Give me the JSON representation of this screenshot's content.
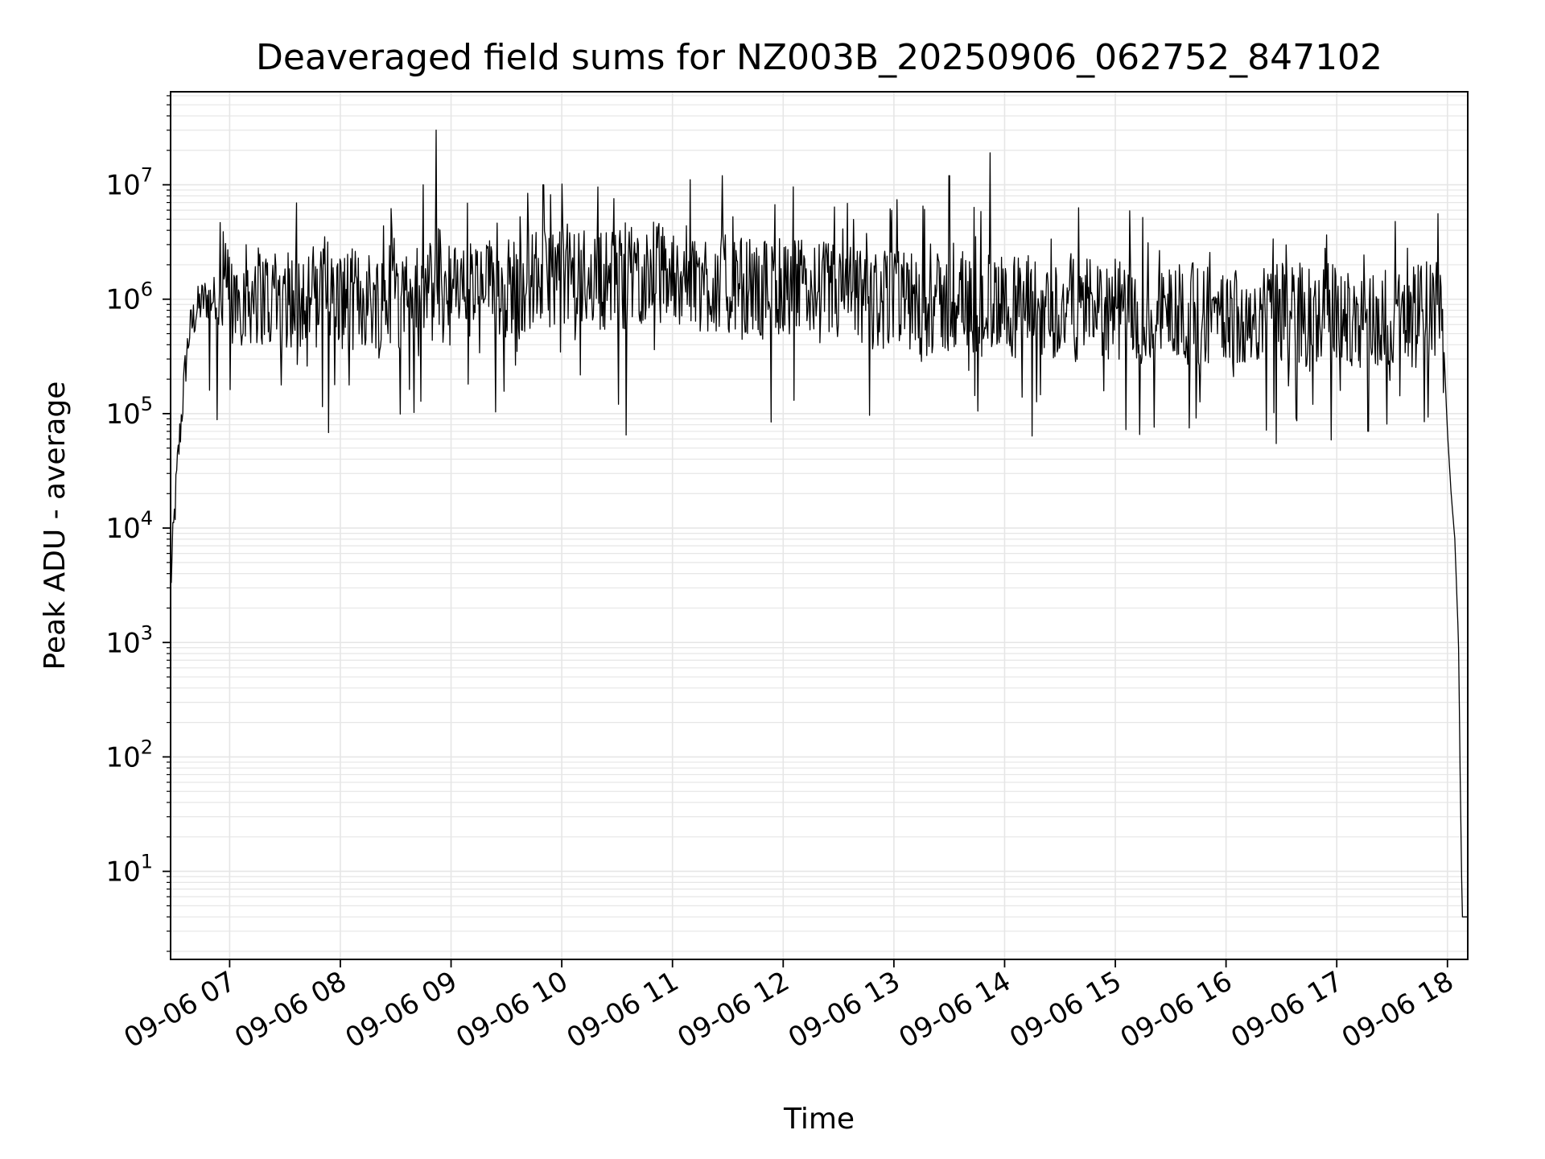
{
  "chart_data": {
    "type": "line",
    "title": "Deaveraged field sums for NZ003B_20250906_062752_847102",
    "xlabel": "Time",
    "ylabel": "Peak ADU - average",
    "yscale": "log",
    "xlim": [
      "2025-09-06 06:28",
      "2025-09-06 18:11"
    ],
    "ylim": [
      1.7,
      65000000
    ],
    "grid": true,
    "line_color": "#000000",
    "grid_color": "#e6e6e6",
    "x_ticks": [
      {
        "value": "2025-09-06 07:00",
        "label": "09-06 07"
      },
      {
        "value": "2025-09-06 08:00",
        "label": "09-06 08"
      },
      {
        "value": "2025-09-06 09:00",
        "label": "09-06 09"
      },
      {
        "value": "2025-09-06 10:00",
        "label": "09-06 10"
      },
      {
        "value": "2025-09-06 11:00",
        "label": "09-06 11"
      },
      {
        "value": "2025-09-06 12:00",
        "label": "09-06 12"
      },
      {
        "value": "2025-09-06 13:00",
        "label": "09-06 13"
      },
      {
        "value": "2025-09-06 14:00",
        "label": "09-06 14"
      },
      {
        "value": "2025-09-06 15:00",
        "label": "09-06 15"
      },
      {
        "value": "2025-09-06 16:00",
        "label": "09-06 16"
      },
      {
        "value": "2025-09-06 17:00",
        "label": "09-06 17"
      },
      {
        "value": "2025-09-06 18:00",
        "label": "09-06 18"
      }
    ],
    "y_ticks": [
      {
        "value": 10,
        "base": "10",
        "exp": "1"
      },
      {
        "value": 100,
        "base": "10",
        "exp": "2"
      },
      {
        "value": 1000,
        "base": "10",
        "exp": "3"
      },
      {
        "value": 10000,
        "base": "10",
        "exp": "4"
      },
      {
        "value": 100000,
        "base": "10",
        "exp": "5"
      },
      {
        "value": 1000000,
        "base": "10",
        "exp": "6"
      },
      {
        "value": 10000000,
        "base": "10",
        "exp": "7"
      }
    ],
    "series": [
      {
        "x": [
          "2025-09-06 06:28",
          "2025-09-06 06:30",
          "2025-09-06 06:32",
          "2025-09-06 06:34",
          "2025-09-06 06:36",
          "2025-09-06 06:38",
          "2025-09-06 06:42",
          "2025-09-06 06:46",
          "2025-09-06 06:50",
          "2025-09-06 06:55",
          "2025-09-06 07:00",
          "2025-09-06 07:15",
          "2025-09-06 07:30",
          "2025-09-06 07:45",
          "2025-09-06 08:00",
          "2025-09-06 08:15",
          "2025-09-06 08:30",
          "2025-09-06 08:45",
          "2025-09-06 09:00",
          "2025-09-06 09:15",
          "2025-09-06 09:30",
          "2025-09-06 09:45",
          "2025-09-06 10:00",
          "2025-09-06 10:15",
          "2025-09-06 10:30",
          "2025-09-06 10:45",
          "2025-09-06 11:00",
          "2025-09-06 11:15",
          "2025-09-06 11:30",
          "2025-09-06 11:45",
          "2025-09-06 12:00",
          "2025-09-06 12:15",
          "2025-09-06 12:30",
          "2025-09-06 12:45",
          "2025-09-06 13:00",
          "2025-09-06 13:15",
          "2025-09-06 13:30",
          "2025-09-06 13:45",
          "2025-09-06 14:00",
          "2025-09-06 14:15",
          "2025-09-06 14:30",
          "2025-09-06 14:45",
          "2025-09-06 15:00",
          "2025-09-06 15:15",
          "2025-09-06 15:30",
          "2025-09-06 15:45",
          "2025-09-06 16:00",
          "2025-09-06 16:15",
          "2025-09-06 16:30",
          "2025-09-06 16:45",
          "2025-09-06 17:00",
          "2025-09-06 17:15",
          "2025-09-06 17:30",
          "2025-09-06 17:45",
          "2025-09-06 17:50",
          "2025-09-06 17:55",
          "2025-09-06 17:58",
          "2025-09-06 18:00",
          "2025-09-06 18:02",
          "2025-09-06 18:04",
          "2025-09-06 18:06",
          "2025-09-06 18:07",
          "2025-09-06 18:08",
          "2025-09-06 18:09",
          "2025-09-06 18:10"
        ],
        "y": [
          3000,
          12000,
          40000,
          100000,
          250000,
          500000,
          800000,
          1000000,
          1000000,
          1100000,
          1100000,
          1100000,
          1000000,
          1100000,
          1000000,
          1000000,
          1000000,
          1100000,
          1100000,
          1200000,
          1300000,
          1500000,
          1700000,
          1500000,
          1500000,
          1700000,
          1700000,
          1500000,
          1300000,
          1200000,
          1300000,
          1200000,
          1100000,
          1000000,
          1000000,
          900000,
          900000,
          900000,
          900000,
          850000,
          800000,
          800000,
          800000,
          750000,
          750000,
          750000,
          750000,
          750000,
          750000,
          750000,
          750000,
          700000,
          700000,
          750000,
          800000,
          800000,
          400000,
          70000,
          20000,
          8000,
          1000,
          50,
          4,
          4,
          4
        ]
      }
    ],
    "spikes": [
      {
        "x": "2025-09-06 08:45",
        "y": 10000000
      },
      {
        "x": "2025-09-06 08:52",
        "y": 30000000
      },
      {
        "x": "2025-09-06 09:50",
        "y": 10000000
      },
      {
        "x": "2025-09-06 11:27",
        "y": 12000000
      },
      {
        "x": "2025-09-06 13:30",
        "y": 12000000
      },
      {
        "x": "2025-09-06 13:52",
        "y": 19000000
      },
      {
        "x": "2025-09-06 10:35",
        "y": 65000
      },
      {
        "x": "2025-09-06 06:49",
        "y": 160000
      },
      {
        "x": "2025-09-06 15:40",
        "y": 75000
      },
      {
        "x": "2025-09-06 17:17",
        "y": 70000
      }
    ]
  }
}
